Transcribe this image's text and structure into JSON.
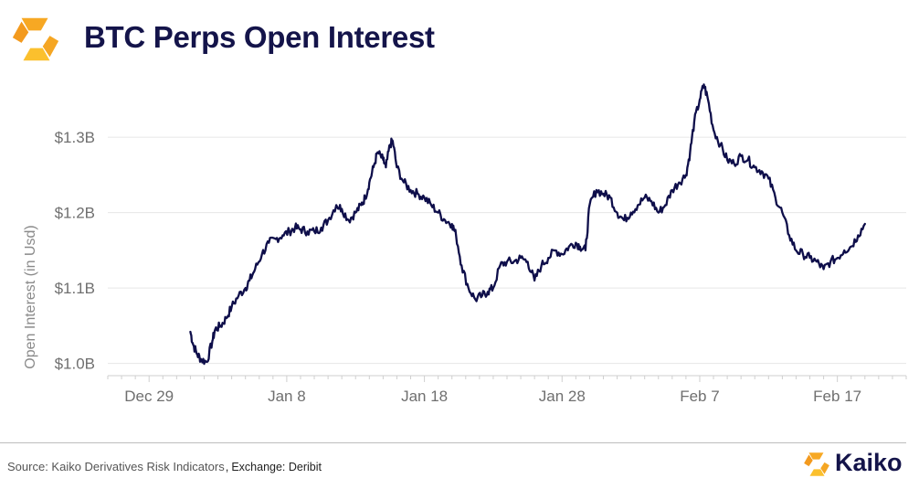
{
  "header": {
    "title": "BTC Perps Open Interest",
    "logo_icon": "kaiko-logo-icon"
  },
  "footer": {
    "source": "Source: Kaiko Derivatives Risk Indicators",
    "separator": ",",
    "exchange": "Exchange: Deribit",
    "brand_name": "Kaiko"
  },
  "colors": {
    "line": "#0e0e4a",
    "title": "#14144a",
    "logo_orange": "#f39a1e",
    "logo_yellow": "#fbc02d",
    "axis_text": "#6f6f6f",
    "grid": "#e6e6e6"
  },
  "chart_data": {
    "type": "line",
    "ylabel": "Open Interest (in Usd)",
    "x_ticks": [
      "Dec 29",
      "Jan 8",
      "Jan 18",
      "Jan 28",
      "Feb 7",
      "Feb 17"
    ],
    "x_tick_days": [
      0,
      10,
      20,
      30,
      40,
      50
    ],
    "y_ticks": [
      "$1.0B",
      "$1.1B",
      "$1.2B",
      "$1.3B"
    ],
    "y_tick_values": [
      1.0,
      1.1,
      1.2,
      1.3
    ],
    "ylim": [
      0.985,
      1.385
    ],
    "xlim": [
      -3,
      55
    ],
    "grid": "horizontal",
    "series": [
      {
        "x": [
          3,
          3.2,
          3.5,
          3.8,
          4.2,
          4.6,
          4.8,
          5.2,
          5.6,
          6,
          6.5,
          7,
          7.3,
          7.7,
          8.2,
          8.7,
          9.2,
          9.7,
          10.2,
          10.6,
          11.0,
          11.5,
          12,
          12.5,
          13.0,
          13.6,
          14.0,
          14.5,
          15.0,
          15.4,
          15.7,
          16.0,
          16.3,
          16.6,
          17.0,
          17.2,
          17.5,
          17.7,
          18.0,
          18.5,
          19.0,
          19.5,
          20.0,
          20.5,
          21.0,
          21.5,
          22.0,
          22.3,
          22.7,
          23.2,
          23.7,
          24.2,
          24.6,
          25.0,
          25.5,
          26.0,
          26.5,
          27.0,
          27.5,
          28.0,
          28.5,
          29.0,
          29.5,
          30.0,
          30.5,
          31.0,
          31.3,
          31.7,
          32.0,
          32.5,
          33.0,
          33.5,
          34.0,
          34.5,
          35.0,
          35.5,
          36.0,
          36.5,
          37.0,
          37.5,
          38.0,
          38.5,
          39.0,
          39.3,
          39.6,
          40.0,
          40.3,
          40.6,
          41.0,
          41.5,
          42.0,
          42.5,
          43.0,
          43.5,
          44.0,
          44.5,
          45.0,
          45.5,
          46.0,
          46.5,
          47.0,
          47.5,
          48.0,
          48.5,
          49.0,
          49.5,
          50.0,
          50.5,
          51.0,
          51.5,
          52.0
        ],
        "y": [
          1.042,
          1.025,
          1.012,
          1.005,
          1.002,
          1.03,
          1.045,
          1.05,
          1.06,
          1.075,
          1.09,
          1.1,
          1.11,
          1.125,
          1.145,
          1.16,
          1.165,
          1.17,
          1.175,
          1.18,
          1.178,
          1.175,
          1.175,
          1.18,
          1.19,
          1.21,
          1.205,
          1.19,
          1.2,
          1.21,
          1.22,
          1.24,
          1.26,
          1.28,
          1.27,
          1.26,
          1.29,
          1.295,
          1.26,
          1.24,
          1.23,
          1.225,
          1.22,
          1.21,
          1.2,
          1.19,
          1.185,
          1.17,
          1.13,
          1.1,
          1.085,
          1.09,
          1.095,
          1.1,
          1.13,
          1.135,
          1.135,
          1.14,
          1.135,
          1.11,
          1.13,
          1.14,
          1.15,
          1.145,
          1.155,
          1.16,
          1.155,
          1.15,
          1.21,
          1.23,
          1.225,
          1.22,
          1.2,
          1.19,
          1.2,
          1.21,
          1.22,
          1.215,
          1.2,
          1.21,
          1.23,
          1.24,
          1.25,
          1.28,
          1.32,
          1.35,
          1.37,
          1.35,
          1.31,
          1.29,
          1.27,
          1.265,
          1.275,
          1.27,
          1.26,
          1.255,
          1.245,
          1.22,
          1.2,
          1.17,
          1.15,
          1.145,
          1.14,
          1.135,
          1.125,
          1.135,
          1.14,
          1.15,
          1.155,
          1.17,
          1.185
        ]
      }
    ]
  }
}
